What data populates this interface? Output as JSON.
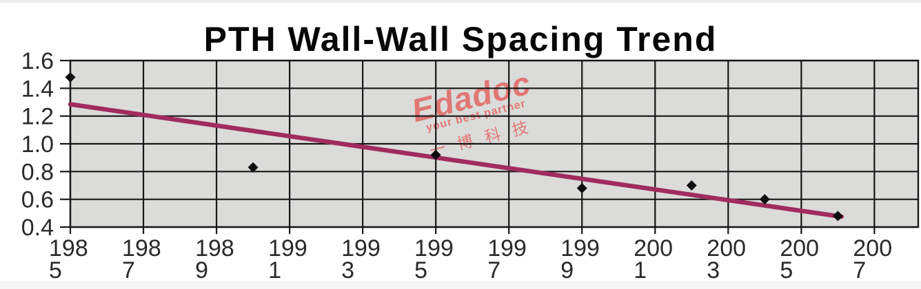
{
  "page": {
    "background": "#ffffff"
  },
  "watermark": {
    "brand": "Edadoc",
    "tagline": "your best partner",
    "cjk": "一博科技",
    "color": "#e25b59"
  },
  "chart_data": {
    "type": "scatter",
    "title": "PTH Wall-Wall Spacing Trend",
    "xlabel": "",
    "ylabel": "",
    "xlim": [
      1985,
      2008.2
    ],
    "ylim": [
      0.4,
      1.6
    ],
    "grid": true,
    "legend": "none",
    "colors": {
      "plot_bg": "#dbdbd9",
      "grid": "#161616",
      "trend": "#a02c5e",
      "marker": "#0d0d0d",
      "tick_text": "#2a2a2a"
    },
    "x_ticks": [
      {
        "year": 1985,
        "line1": "198",
        "line2": "5"
      },
      {
        "year": 1987,
        "line1": "198",
        "line2": "7"
      },
      {
        "year": 1989,
        "line1": "198",
        "line2": "9"
      },
      {
        "year": 1991,
        "line1": "199",
        "line2": "1"
      },
      {
        "year": 1993,
        "line1": "199",
        "line2": "3"
      },
      {
        "year": 1995,
        "line1": "199",
        "line2": "5"
      },
      {
        "year": 1997,
        "line1": "199",
        "line2": "7"
      },
      {
        "year": 1999,
        "line1": "199",
        "line2": "9"
      },
      {
        "year": 2001,
        "line1": "200",
        "line2": "1"
      },
      {
        "year": 2003,
        "line1": "200",
        "line2": "3"
      },
      {
        "year": 2005,
        "line1": "200",
        "line2": "5"
      },
      {
        "year": 2007,
        "line1": "200",
        "line2": "7"
      }
    ],
    "y_ticks": [
      {
        "value": 1.6,
        "label": "1.6"
      },
      {
        "value": 1.4,
        "label": "1.4"
      },
      {
        "value": 1.2,
        "label": "1.2"
      },
      {
        "value": 1.0,
        "label": "1.0"
      },
      {
        "value": 0.8,
        "label": "0.8"
      },
      {
        "value": 0.6,
        "label": "0.6"
      },
      {
        "value": 0.4,
        "label": "0.4"
      }
    ],
    "points": [
      {
        "x": 1985,
        "y": 1.48
      },
      {
        "x": 1990,
        "y": 0.83
      },
      {
        "x": 1995,
        "y": 0.92
      },
      {
        "x": 1999,
        "y": 0.68
      },
      {
        "x": 2002,
        "y": 0.7
      },
      {
        "x": 2004,
        "y": 0.6
      },
      {
        "x": 2006,
        "y": 0.48
      }
    ],
    "trend_line": {
      "x1": 1985,
      "y1": 1.285,
      "x2": 2006.1,
      "y2": 0.475
    }
  }
}
